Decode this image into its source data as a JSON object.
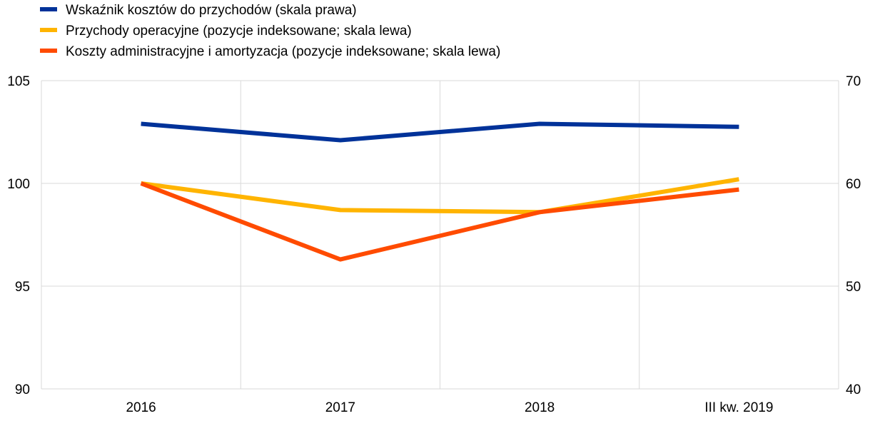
{
  "chart_data": {
    "type": "line",
    "categories": [
      "2016",
      "2017",
      "2018",
      "III kw. 2019"
    ],
    "series": [
      {
        "name": "Wskaźnik kosztów do przychodów (skala prawa)",
        "axis": "right",
        "color": "#003299",
        "values": [
          65.8,
          64.2,
          65.8,
          65.5
        ]
      },
      {
        "name": "Przychody operacyjne (pozycje indeksowane; skala lewa)",
        "axis": "left",
        "color": "#FFB400",
        "values": [
          100.0,
          98.7,
          98.6,
          100.2
        ]
      },
      {
        "name": "Koszty administracyjne i amortyzacja (pozycje indeksowane; skala lewa)",
        "axis": "left",
        "color": "#FF4B00",
        "values": [
          100.0,
          96.3,
          98.6,
          99.7
        ]
      }
    ],
    "y_left": {
      "min": 90,
      "max": 105,
      "ticks": [
        90,
        95,
        100,
        105
      ]
    },
    "y_right": {
      "min": 40,
      "max": 70,
      "ticks": [
        40,
        50,
        60,
        70
      ]
    },
    "grid": true,
    "legend_position": "top-left"
  }
}
